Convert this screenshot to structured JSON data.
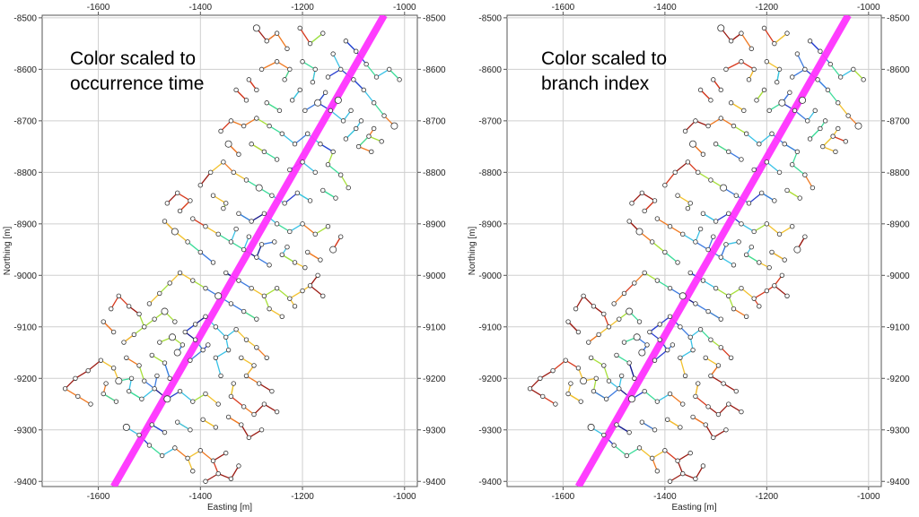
{
  "chart_data": [
    {
      "type": "scatter",
      "annotation": [
        "Color scaled to",
        "occurrence time"
      ],
      "xlabel": "Easting [m]",
      "ylabel": "Northing [m]",
      "xlim": [
        -1710,
        -975
      ],
      "ylim": [
        -9410,
        -8495
      ],
      "xticks": [
        -1600,
        -1400,
        -1200,
        -1000
      ],
      "yticks": [
        -8500,
        -8600,
        -8700,
        -8800,
        -8900,
        -9000,
        -9100,
        -9200,
        -9300,
        -9400
      ],
      "grid": true,
      "fault_line": {
        "x": [
          -1570,
          -1040
        ],
        "y": [
          -9410,
          -8495
        ],
        "color": "#ff33ff"
      },
      "color_scale": "occurrence-time",
      "colors": [
        "#1a1a8c",
        "#2b3fd0",
        "#3d7be0",
        "#39c2e6",
        "#3ddc9a",
        "#a7e03a",
        "#f2c12e",
        "#f07a22",
        "#d83a1e",
        "#9c1c14"
      ]
    },
    {
      "type": "scatter",
      "annotation": [
        "Color scaled to",
        "branch index"
      ],
      "xlabel": "Easting [m]",
      "ylabel": "Northing [m]",
      "xlim": [
        -1710,
        -975
      ],
      "ylim": [
        -9410,
        -8495
      ],
      "xticks": [
        -1600,
        -1400,
        -1200,
        -1000
      ],
      "yticks": [
        -8500,
        -8600,
        -8700,
        -8800,
        -8900,
        -9000,
        -9100,
        -9200,
        -9300,
        -9400
      ],
      "grid": true,
      "fault_line": {
        "x": [
          -1570,
          -1040
        ],
        "y": [
          -9410,
          -8495
        ],
        "color": "#ff33ff"
      },
      "color_scale": "branch-index",
      "colors": [
        "#1a1a8c",
        "#2b3fd0",
        "#3d7be0",
        "#39c2e6",
        "#3ddc9a",
        "#a7e03a",
        "#f2c12e",
        "#f07a22",
        "#d83a1e",
        "#9c1c14"
      ]
    }
  ],
  "events": [
    [
      -1290,
      -8520
    ],
    [
      -1270,
      -8545
    ],
    [
      -1250,
      -8530
    ],
    [
      -1230,
      -8560
    ],
    [
      -1205,
      -8520
    ],
    [
      -1185,
      -8550
    ],
    [
      -1160,
      -8530
    ],
    [
      -1140,
      -8570
    ],
    [
      -1115,
      -8545
    ],
    [
      -1095,
      -8565
    ],
    [
      -1075,
      -8590
    ],
    [
      -1055,
      -8615
    ],
    [
      -1030,
      -8600
    ],
    [
      -1010,
      -8620
    ],
    [
      -1080,
      -8640
    ],
    [
      -1060,
      -8665
    ],
    [
      -1040,
      -8690
    ],
    [
      -1020,
      -8710
    ],
    [
      -1100,
      -8620
    ],
    [
      -1125,
      -8600
    ],
    [
      -1150,
      -8615
    ],
    [
      -1175,
      -8600
    ],
    [
      -1200,
      -8585
    ],
    [
      -1225,
      -8600
    ],
    [
      -1250,
      -8585
    ],
    [
      -1280,
      -8600
    ],
    [
      -1305,
      -8620
    ],
    [
      -1330,
      -8640
    ],
    [
      -1310,
      -8660
    ],
    [
      -1290,
      -8640
    ],
    [
      -1270,
      -8665
    ],
    [
      -1245,
      -8680
    ],
    [
      -1220,
      -8660
    ],
    [
      -1195,
      -8680
    ],
    [
      -1170,
      -8665
    ],
    [
      -1145,
      -8680
    ],
    [
      -1120,
      -8700
    ],
    [
      -1095,
      -8715
    ],
    [
      -1070,
      -8730
    ],
    [
      -1090,
      -8750
    ],
    [
      -1115,
      -8735
    ],
    [
      -1140,
      -8760
    ],
    [
      -1165,
      -8745
    ],
    [
      -1190,
      -8725
    ],
    [
      -1215,
      -8745
    ],
    [
      -1240,
      -8725
    ],
    [
      -1265,
      -8710
    ],
    [
      -1290,
      -8695
    ],
    [
      -1315,
      -8710
    ],
    [
      -1340,
      -8700
    ],
    [
      -1360,
      -8720
    ],
    [
      -1345,
      -8745
    ],
    [
      -1325,
      -8765
    ],
    [
      -1300,
      -8745
    ],
    [
      -1275,
      -8760
    ],
    [
      -1250,
      -8775
    ],
    [
      -1225,
      -8795
    ],
    [
      -1200,
      -8780
    ],
    [
      -1175,
      -8800
    ],
    [
      -1150,
      -8785
    ],
    [
      -1125,
      -8805
    ],
    [
      -1110,
      -8830
    ],
    [
      -1135,
      -8850
    ],
    [
      -1160,
      -8835
    ],
    [
      -1185,
      -8855
    ],
    [
      -1210,
      -8840
    ],
    [
      -1235,
      -8860
    ],
    [
      -1260,
      -8845
    ],
    [
      -1285,
      -8830
    ],
    [
      -1310,
      -8815
    ],
    [
      -1335,
      -8800
    ],
    [
      -1355,
      -8780
    ],
    [
      -1380,
      -8800
    ],
    [
      -1400,
      -8825
    ],
    [
      -1375,
      -8845
    ],
    [
      -1350,
      -8860
    ],
    [
      -1325,
      -8880
    ],
    [
      -1300,
      -8895
    ],
    [
      -1275,
      -8880
    ],
    [
      -1250,
      -8900
    ],
    [
      -1225,
      -8915
    ],
    [
      -1200,
      -8900
    ],
    [
      -1175,
      -8920
    ],
    [
      -1150,
      -8905
    ],
    [
      -1125,
      -8925
    ],
    [
      -1140,
      -8950
    ],
    [
      -1165,
      -8970
    ],
    [
      -1190,
      -8955
    ],
    [
      -1215,
      -8975
    ],
    [
      -1240,
      -8960
    ],
    [
      -1265,
      -8980
    ],
    [
      -1290,
      -8965
    ],
    [
      -1315,
      -8950
    ],
    [
      -1340,
      -8935
    ],
    [
      -1365,
      -8920
    ],
    [
      -1390,
      -8905
    ],
    [
      -1415,
      -8890
    ],
    [
      -1440,
      -8875
    ],
    [
      -1420,
      -8855
    ],
    [
      -1445,
      -8840
    ],
    [
      -1465,
      -8860
    ],
    [
      -1470,
      -8895
    ],
    [
      -1450,
      -8915
    ],
    [
      -1425,
      -8935
    ],
    [
      -1400,
      -8955
    ],
    [
      -1375,
      -8975
    ],
    [
      -1350,
      -8995
    ],
    [
      -1325,
      -9010
    ],
    [
      -1300,
      -9025
    ],
    [
      -1275,
      -9040
    ],
    [
      -1250,
      -9025
    ],
    [
      -1225,
      -9045
    ],
    [
      -1200,
      -9030
    ],
    [
      -1215,
      -9060
    ],
    [
      -1240,
      -9080
    ],
    [
      -1265,
      -9065
    ],
    [
      -1290,
      -9085
    ],
    [
      -1315,
      -9070
    ],
    [
      -1340,
      -9055
    ],
    [
      -1365,
      -9040
    ],
    [
      -1390,
      -9025
    ],
    [
      -1415,
      -9010
    ],
    [
      -1440,
      -8995
    ],
    [
      -1460,
      -9015
    ],
    [
      -1480,
      -9035
    ],
    [
      -1500,
      -9055
    ],
    [
      -1520,
      -9075
    ],
    [
      -1540,
      -9060
    ],
    [
      -1560,
      -9040
    ],
    [
      -1575,
      -9065
    ],
    [
      -1590,
      -9090
    ],
    [
      -1570,
      -9110
    ],
    [
      -1550,
      -9130
    ],
    [
      -1530,
      -9115
    ],
    [
      -1510,
      -9100
    ],
    [
      -1490,
      -9085
    ],
    [
      -1470,
      -9070
    ],
    [
      -1450,
      -9090
    ],
    [
      -1430,
      -9110
    ],
    [
      -1410,
      -9095
    ],
    [
      -1390,
      -9080
    ],
    [
      -1370,
      -9100
    ],
    [
      -1350,
      -9120
    ],
    [
      -1330,
      -9105
    ],
    [
      -1310,
      -9125
    ],
    [
      -1290,
      -9140
    ],
    [
      -1270,
      -9160
    ],
    [
      -1295,
      -9175
    ],
    [
      -1320,
      -9160
    ],
    [
      -1345,
      -9145
    ],
    [
      -1370,
      -9160
    ],
    [
      -1395,
      -9145
    ],
    [
      -1420,
      -9165
    ],
    [
      -1445,
      -9150
    ],
    [
      -1470,
      -9170
    ],
    [
      -1495,
      -9155
    ],
    [
      -1520,
      -9175
    ],
    [
      -1545,
      -9160
    ],
    [
      -1570,
      -9180
    ],
    [
      -1595,
      -9165
    ],
    [
      -1620,
      -9185
    ],
    [
      -1645,
      -9200
    ],
    [
      -1665,
      -9220
    ],
    [
      -1640,
      -9235
    ],
    [
      -1615,
      -9250
    ],
    [
      -1590,
      -9230
    ],
    [
      -1565,
      -9245
    ],
    [
      -1540,
      -9225
    ],
    [
      -1515,
      -9240
    ],
    [
      -1490,
      -9220
    ],
    [
      -1465,
      -9240
    ],
    [
      -1440,
      -9225
    ],
    [
      -1415,
      -9245
    ],
    [
      -1390,
      -9230
    ],
    [
      -1365,
      -9250
    ],
    [
      -1340,
      -9235
    ],
    [
      -1315,
      -9255
    ],
    [
      -1295,
      -9270
    ],
    [
      -1320,
      -9290
    ],
    [
      -1345,
      -9275
    ],
    [
      -1370,
      -9295
    ],
    [
      -1395,
      -9280
    ],
    [
      -1420,
      -9300
    ],
    [
      -1445,
      -9285
    ],
    [
      -1470,
      -9305
    ],
    [
      -1495,
      -9290
    ],
    [
      -1520,
      -9310
    ],
    [
      -1545,
      -9295
    ],
    [
      -1500,
      -9330
    ],
    [
      -1475,
      -9350
    ],
    [
      -1450,
      -9335
    ],
    [
      -1425,
      -9355
    ],
    [
      -1400,
      -9340
    ],
    [
      -1375,
      -9360
    ],
    [
      -1350,
      -9345
    ],
    [
      -1325,
      -9370
    ],
    [
      -1340,
      -9395
    ],
    [
      -1365,
      -9385
    ],
    [
      -1390,
      -9400
    ],
    [
      -1415,
      -9380
    ],
    [
      -1235,
      -8620
    ],
    [
      -1205,
      -8640
    ],
    [
      -1180,
      -8625
    ],
    [
      -1155,
      -8645
    ],
    [
      -1130,
      -8660
    ],
    [
      -1105,
      -8680
    ],
    [
      -1085,
      -8700
    ],
    [
      -1060,
      -8715
    ],
    [
      -1045,
      -8740
    ],
    [
      -1065,
      -8760
    ],
    [
      -1355,
      -8870
    ],
    [
      -1330,
      -8910
    ],
    [
      -1305,
      -8925
    ],
    [
      -1280,
      -8940
    ],
    [
      -1255,
      -8935
    ],
    [
      -1230,
      -8945
    ],
    [
      -1195,
      -8985
    ],
    [
      -1170,
      -9000
    ],
    [
      -1185,
      -9020
    ],
    [
      -1160,
      -9040
    ],
    [
      -1480,
      -9130
    ],
    [
      -1455,
      -9120
    ],
    [
      -1435,
      -9135
    ],
    [
      -1410,
      -9125
    ],
    [
      -1385,
      -9135
    ],
    [
      -1360,
      -9195
    ],
    [
      -1335,
      -9210
    ],
    [
      -1310,
      -9195
    ],
    [
      -1285,
      -9210
    ],
    [
      -1260,
      -9225
    ],
    [
      -1275,
      -9250
    ],
    [
      -1250,
      -9265
    ],
    [
      -1280,
      -9300
    ],
    [
      -1305,
      -9315
    ],
    [
      -1460,
      -9200
    ],
    [
      -1485,
      -9195
    ],
    [
      -1510,
      -9205
    ],
    [
      -1535,
      -9200
    ],
    [
      -1560,
      -9205
    ],
    [
      -1585,
      -9210
    ]
  ]
}
